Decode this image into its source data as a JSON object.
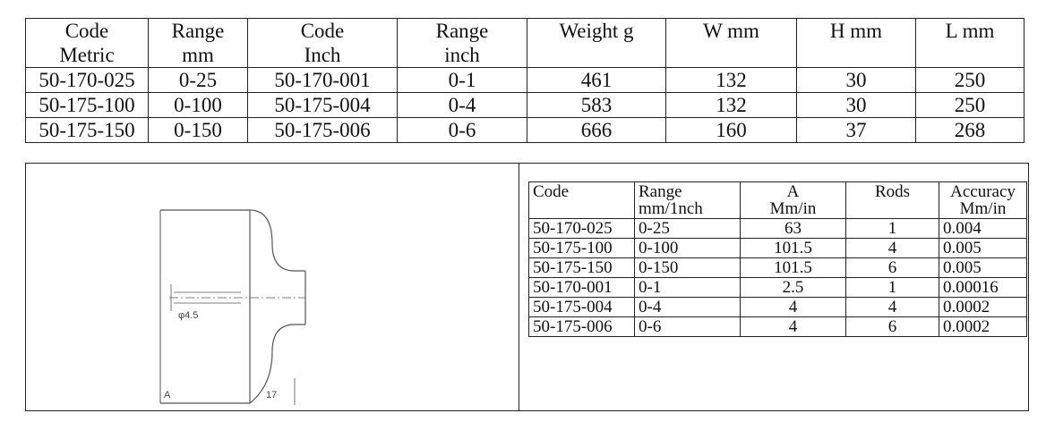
{
  "top_table": {
    "header_row1": [
      "Code",
      "Range",
      "Code",
      "Range",
      "Weight g",
      "W mm",
      "H mm",
      "L mm"
    ],
    "header_row2": [
      "Metric",
      "mm",
      "Inch",
      "inch",
      "",
      "",
      "",
      ""
    ],
    "rows": [
      [
        "50-170-025",
        "0-25",
        "50-170-001",
        "0-1",
        "461",
        "132",
        "30",
        "250"
      ],
      [
        "50-175-100",
        "0-100",
        "50-175-004",
        "0-4",
        "583",
        "132",
        "30",
        "250"
      ],
      [
        "50-175-150",
        "0-150",
        "50-175-006",
        "0-6",
        "666",
        "160",
        "37",
        "268"
      ]
    ]
  },
  "drawing": {
    "diameter_label": "φ4.5",
    "dim_a_label": "A",
    "dim_17_label": "17"
  },
  "spec_table": {
    "headers": [
      {
        "line1": "Code",
        "line2": ""
      },
      {
        "line1": "Range",
        "line2": "mm/1nch"
      },
      {
        "line1": "A",
        "line2": "Mm/in"
      },
      {
        "line1": "Rods",
        "line2": ""
      },
      {
        "line1": "Accuracy",
        "line2": "Mm/in"
      }
    ],
    "rows": [
      [
        "50-170-025",
        "0-25",
        "63",
        "1",
        "0.004"
      ],
      [
        "50-175-100",
        "0-100",
        "101.5",
        "4",
        "0.005"
      ],
      [
        "50-175-150",
        "0-150",
        "101.5",
        "6",
        "0.005"
      ],
      [
        "50-170-001",
        "0-1",
        "2.5",
        "1",
        "0.00016"
      ],
      [
        "50-175-004",
        "0-4",
        "4",
        "4",
        "0.0002"
      ],
      [
        "50-175-006",
        "0-6",
        "4",
        "6",
        "0.0002"
      ]
    ]
  }
}
